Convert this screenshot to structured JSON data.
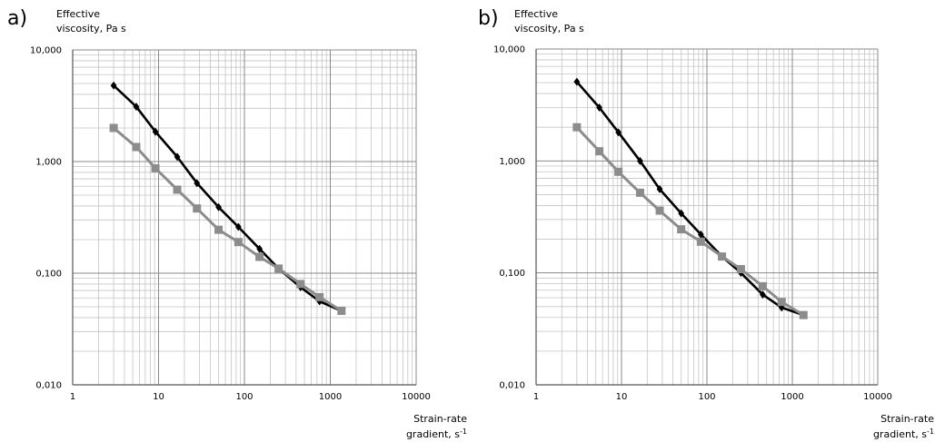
{
  "chart_data": [
    {
      "type": "line",
      "panel_label": "a)",
      "ylabel": [
        "Effective",
        "viscosity, Pa s"
      ],
      "xlabel": [
        "Strain-rate",
        "gradient, s"
      ],
      "xlabel_unit_exponent": "-1",
      "xscale": "log",
      "yscale": "log",
      "xlim": [
        1,
        10000
      ],
      "ylim": [
        0.01,
        10
      ],
      "grid": true,
      "x_tick_labels": [
        "1",
        "10",
        "100",
        "1000",
        "10000"
      ],
      "y_tick_labels": [
        "0,010",
        "0,100",
        "1,000",
        "10,000"
      ],
      "series": [
        {
          "marker": "diamond",
          "color": "#000000",
          "x": [
            3,
            5.5,
            9.2,
            16.5,
            28,
            50,
            85,
            150,
            250,
            450,
            750,
            1350
          ],
          "y": [
            4.8,
            3.1,
            1.85,
            1.1,
            0.64,
            0.39,
            0.26,
            0.165,
            0.11,
            0.075,
            0.056,
            0.046
          ]
        },
        {
          "marker": "square",
          "color": "#8c8c8c",
          "x": [
            3,
            5.5,
            9.2,
            16.5,
            28,
            50,
            85,
            150,
            250,
            450,
            750,
            1350
          ],
          "y": [
            2.0,
            1.35,
            0.87,
            0.56,
            0.38,
            0.245,
            0.19,
            0.14,
            0.11,
            0.08,
            0.061,
            0.046
          ]
        }
      ]
    },
    {
      "type": "line",
      "panel_label": "b)",
      "ylabel": [
        "Effective",
        "viscosity, Pa s"
      ],
      "xlabel": [
        "Strain-rate",
        "gradient, s"
      ],
      "xlabel_unit_exponent": "-1",
      "xscale": "log",
      "yscale": "log",
      "xlim": [
        1,
        10000
      ],
      "ylim": [
        0.01,
        10
      ],
      "grid": true,
      "x_tick_labels": [
        "1",
        "10",
        "100",
        "1000",
        "10000"
      ],
      "y_tick_labels": [
        "0,010",
        "0,100",
        "1,000",
        "10,000"
      ],
      "series": [
        {
          "marker": "diamond",
          "color": "#000000",
          "x": [
            3,
            5.5,
            9.2,
            16.5,
            28,
            50,
            85,
            150,
            250,
            450,
            750,
            1350
          ],
          "y": [
            5.1,
            3.0,
            1.8,
            1.0,
            0.56,
            0.34,
            0.22,
            0.14,
            0.1,
            0.064,
            0.049,
            0.042
          ]
        },
        {
          "marker": "square",
          "color": "#8c8c8c",
          "x": [
            3,
            5.5,
            9.2,
            16.5,
            28,
            50,
            85,
            150,
            250,
            450,
            750,
            1350
          ],
          "y": [
            2.0,
            1.22,
            0.8,
            0.52,
            0.36,
            0.245,
            0.19,
            0.14,
            0.108,
            0.076,
            0.055,
            0.042
          ]
        }
      ]
    }
  ]
}
